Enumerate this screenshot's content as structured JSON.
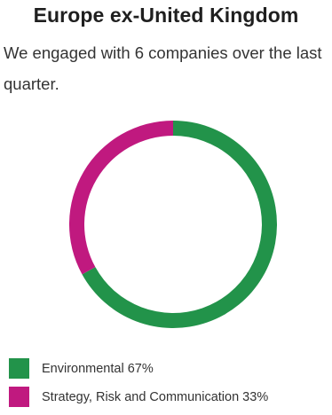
{
  "title": "Europe ex-United Kingdom",
  "subtitle": "We engaged with 6 companies over the last quarter.",
  "chart_data": {
    "type": "pie",
    "categories": [
      "Environmental",
      "Strategy, Risk and Communication"
    ],
    "values": [
      67,
      33
    ],
    "colors": [
      "#22934a",
      "#c0197f"
    ],
    "legend": [
      "Environmental 67%",
      "Strategy, Risk and Communication 33%"
    ],
    "style": "donut",
    "legend_position": "bottom-left"
  }
}
